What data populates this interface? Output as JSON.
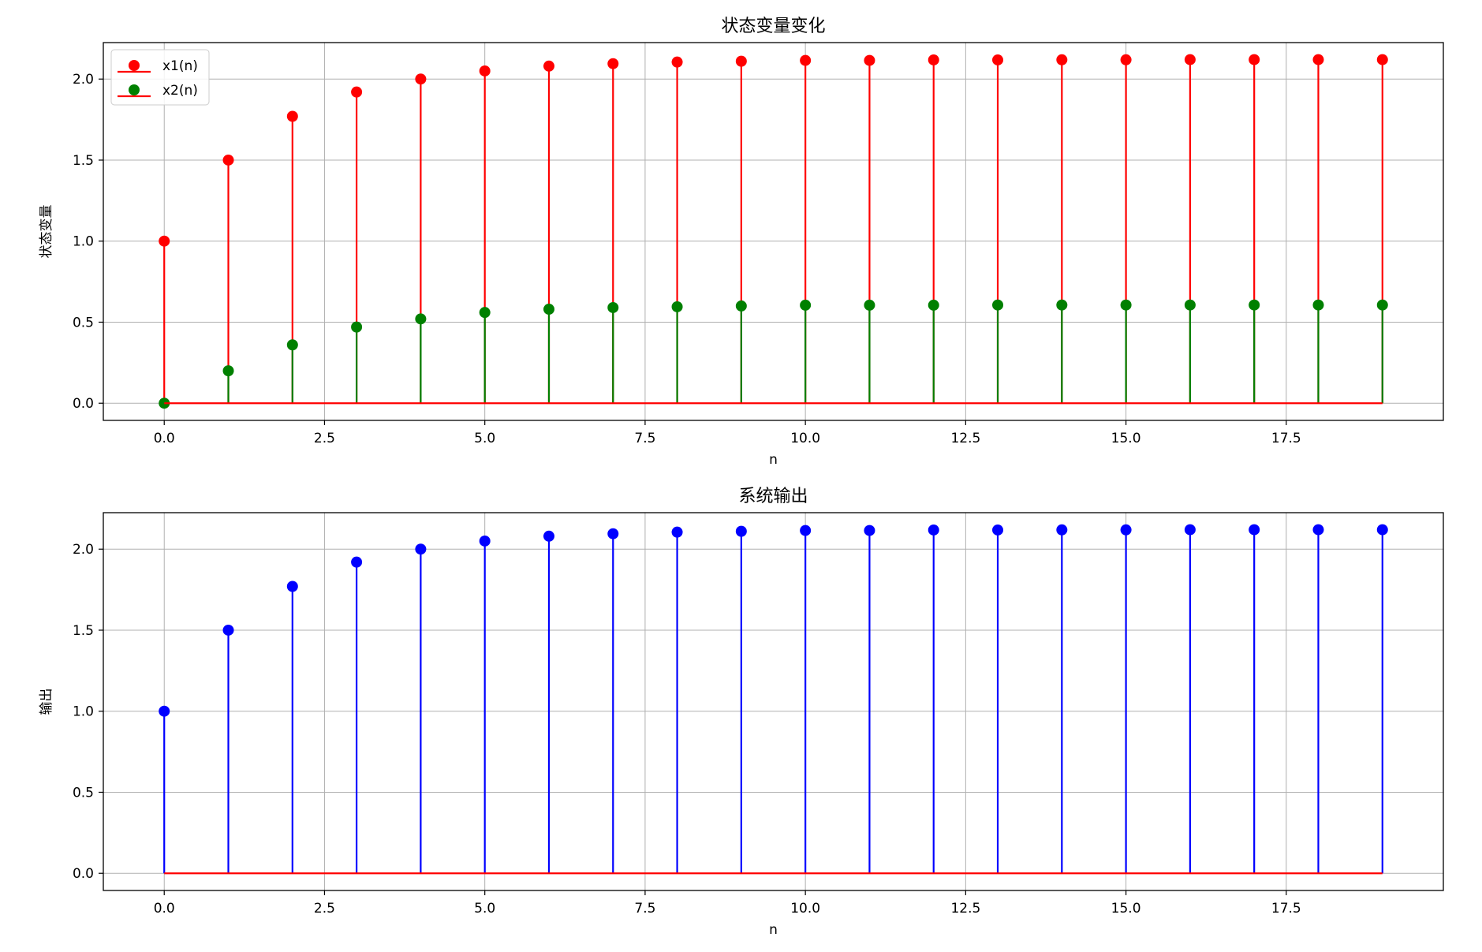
{
  "chart_data": [
    {
      "type": "stem",
      "title": "状态变量变化",
      "xlabel": "n",
      "ylabel": "状态变量",
      "xlim": [
        -0.95,
        19.95
      ],
      "ylim": [
        -0.106,
        2.225
      ],
      "xticks": [
        0.0,
        2.5,
        5.0,
        7.5,
        10.0,
        12.5,
        15.0,
        17.5
      ],
      "xtick_labels": [
        "0.0",
        "2.5",
        "5.0",
        "7.5",
        "10.0",
        "12.5",
        "15.0",
        "17.5"
      ],
      "yticks": [
        0.0,
        0.5,
        1.0,
        1.5,
        2.0
      ],
      "ytick_labels": [
        "0.0",
        "0.5",
        "1.0",
        "1.5",
        "2.0"
      ],
      "grid": true,
      "legend": "top-left",
      "x": [
        0,
        1,
        2,
        3,
        4,
        5,
        6,
        7,
        8,
        9,
        10,
        11,
        12,
        13,
        14,
        15,
        16,
        17,
        18,
        19
      ],
      "series": [
        {
          "name": "x1(n)",
          "color": "#ff0000",
          "values": [
            1.0,
            1.5,
            1.77,
            1.92,
            2.0,
            2.05,
            2.08,
            2.095,
            2.105,
            2.11,
            2.115,
            2.115,
            2.118,
            2.118,
            2.119,
            2.119,
            2.12,
            2.12,
            2.12,
            2.12
          ]
        },
        {
          "name": "x2(n)",
          "color": "#008000",
          "values": [
            0.0,
            0.2,
            0.36,
            0.47,
            0.52,
            0.56,
            0.58,
            0.59,
            0.595,
            0.6,
            0.605,
            0.605,
            0.605,
            0.606,
            0.606,
            0.606,
            0.606,
            0.606,
            0.606,
            0.606
          ]
        }
      ],
      "baseline_color": "#ff0000"
    },
    {
      "type": "stem",
      "title": "系统输出",
      "xlabel": "n",
      "ylabel": "输出",
      "xlim": [
        -0.95,
        19.95
      ],
      "ylim": [
        -0.106,
        2.225
      ],
      "xticks": [
        0.0,
        2.5,
        5.0,
        7.5,
        10.0,
        12.5,
        15.0,
        17.5
      ],
      "xtick_labels": [
        "0.0",
        "2.5",
        "5.0",
        "7.5",
        "10.0",
        "12.5",
        "15.0",
        "17.5"
      ],
      "yticks": [
        0.0,
        0.5,
        1.0,
        1.5,
        2.0
      ],
      "ytick_labels": [
        "0.0",
        "0.5",
        "1.0",
        "1.5",
        "2.0"
      ],
      "grid": true,
      "x": [
        0,
        1,
        2,
        3,
        4,
        5,
        6,
        7,
        8,
        9,
        10,
        11,
        12,
        13,
        14,
        15,
        16,
        17,
        18,
        19
      ],
      "series": [
        {
          "color": "#0000ff",
          "values": [
            1.0,
            1.5,
            1.77,
            1.92,
            2.0,
            2.05,
            2.08,
            2.095,
            2.105,
            2.11,
            2.115,
            2.115,
            2.118,
            2.118,
            2.119,
            2.119,
            2.12,
            2.12,
            2.12,
            2.12
          ]
        }
      ],
      "baseline_color": "#ff0000"
    }
  ]
}
